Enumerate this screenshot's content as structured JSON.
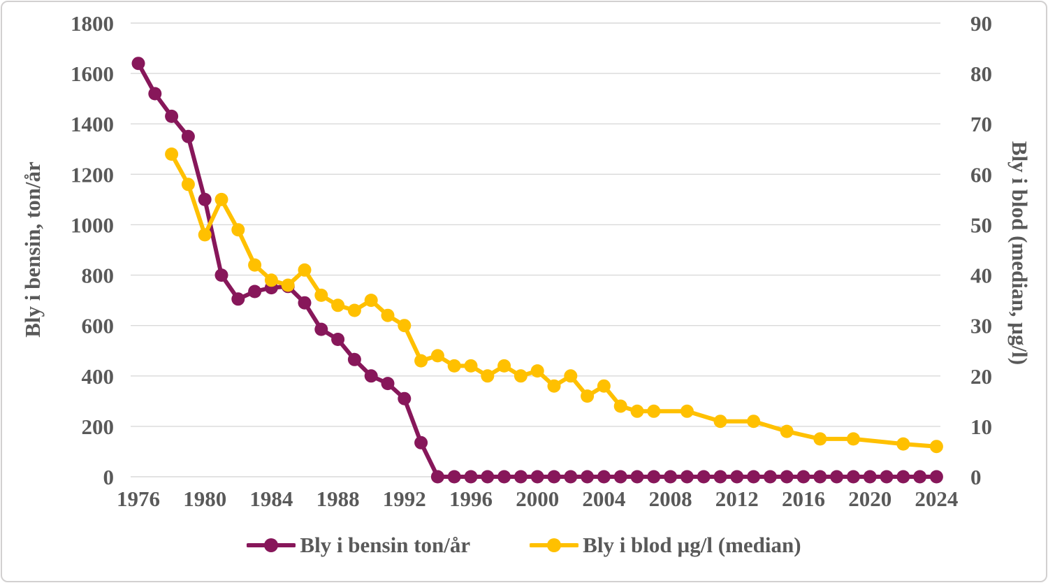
{
  "chart_data": {
    "type": "line",
    "title": "",
    "grid": "horizontal",
    "legend_position": "bottom",
    "x_axis": {
      "ticks": [
        1976,
        1980,
        1984,
        1988,
        1992,
        1996,
        2000,
        2004,
        2008,
        2012,
        2016,
        2020,
        2024
      ],
      "range": [
        1976,
        2024
      ]
    },
    "left_axis": {
      "label": "Bly i bensin, ton/år",
      "ticks": [
        0,
        200,
        400,
        600,
        800,
        1000,
        1200,
        1400,
        1600,
        1800
      ],
      "range": [
        0,
        1800
      ]
    },
    "right_axis": {
      "label": "Bly i blod (median, µg/l)",
      "ticks": [
        0,
        10,
        20,
        30,
        40,
        50,
        60,
        70,
        80,
        90
      ],
      "range": [
        0,
        90
      ]
    },
    "series": [
      {
        "name": "Bly i bensin ton/år",
        "axis": "left",
        "color": "#87175a",
        "points": [
          [
            1976,
            1640
          ],
          [
            1977,
            1520
          ],
          [
            1978,
            1430
          ],
          [
            1979,
            1350
          ],
          [
            1980,
            1100
          ],
          [
            1981,
            800
          ],
          [
            1982,
            705
          ],
          [
            1983,
            735
          ],
          [
            1984,
            750
          ],
          [
            1985,
            755
          ],
          [
            1986,
            690
          ],
          [
            1987,
            585
          ],
          [
            1988,
            545
          ],
          [
            1989,
            465
          ],
          [
            1990,
            400
          ],
          [
            1991,
            370
          ],
          [
            1992,
            310
          ],
          [
            1993,
            135
          ],
          [
            1994,
            0
          ],
          [
            1995,
            0
          ],
          [
            1996,
            0
          ],
          [
            1997,
            0
          ],
          [
            1998,
            0
          ],
          [
            1999,
            0
          ],
          [
            2000,
            0
          ],
          [
            2001,
            0
          ],
          [
            2002,
            0
          ],
          [
            2003,
            0
          ],
          [
            2004,
            0
          ],
          [
            2005,
            0
          ],
          [
            2006,
            0
          ],
          [
            2007,
            0
          ],
          [
            2008,
            0
          ],
          [
            2009,
            0
          ],
          [
            2010,
            0
          ],
          [
            2011,
            0
          ],
          [
            2012,
            0
          ],
          [
            2013,
            0
          ],
          [
            2014,
            0
          ],
          [
            2015,
            0
          ],
          [
            2016,
            0
          ],
          [
            2017,
            0
          ],
          [
            2018,
            0
          ],
          [
            2019,
            0
          ],
          [
            2020,
            0
          ],
          [
            2021,
            0
          ],
          [
            2022,
            0
          ],
          [
            2023,
            0
          ],
          [
            2024,
            0
          ]
        ]
      },
      {
        "name": "Bly i blod µg/l (median)",
        "axis": "right",
        "color": "#ffc000",
        "points": [
          [
            1978,
            64
          ],
          [
            1979,
            58
          ],
          [
            1980,
            48
          ],
          [
            1981,
            55
          ],
          [
            1982,
            49
          ],
          [
            1983,
            42
          ],
          [
            1984,
            39
          ],
          [
            1985,
            38
          ],
          [
            1986,
            41
          ],
          [
            1987,
            36
          ],
          [
            1988,
            34
          ],
          [
            1989,
            33
          ],
          [
            1990,
            35
          ],
          [
            1991,
            32
          ],
          [
            1992,
            30
          ],
          [
            1993,
            23
          ],
          [
            1994,
            24
          ],
          [
            1995,
            22
          ],
          [
            1996,
            22
          ],
          [
            1997,
            20
          ],
          [
            1998,
            22
          ],
          [
            1999,
            20
          ],
          [
            2000,
            21
          ],
          [
            2001,
            18
          ],
          [
            2002,
            20
          ],
          [
            2003,
            16
          ],
          [
            2004,
            18
          ],
          [
            2005,
            14
          ],
          [
            2006,
            13
          ],
          [
            2007,
            13
          ],
          [
            2009,
            13
          ],
          [
            2011,
            11
          ],
          [
            2013,
            11
          ],
          [
            2015,
            9
          ],
          [
            2017,
            7.5
          ],
          [
            2019,
            7.5
          ],
          [
            2022,
            6.5
          ],
          [
            2024,
            6
          ]
        ]
      }
    ]
  },
  "colors": {
    "text": "#595959",
    "gridline": "#d9d9d9",
    "background": "#ffffff",
    "border": "#d2d0d0"
  }
}
